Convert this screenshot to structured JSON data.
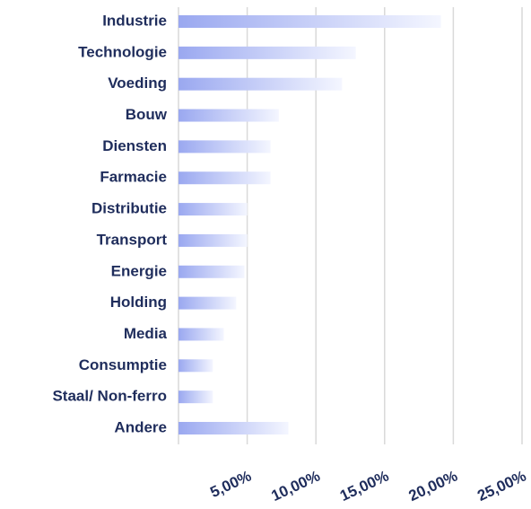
{
  "chart_data": {
    "type": "hbar",
    "categories": [
      "Industrie",
      "Technologie",
      "Voeding",
      "Bouw",
      "Diensten",
      "Farmacie",
      "Distributie",
      "Transport",
      "Energie",
      "Holding",
      "Media",
      "Consumptie",
      "Staal/ Non-ferro",
      "Andere"
    ],
    "values": [
      19.1,
      12.9,
      11.9,
      7.3,
      6.7,
      6.7,
      5.0,
      5.0,
      4.8,
      4.2,
      3.3,
      2.5,
      2.5,
      8.0
    ],
    "color": "#9aa8f0",
    "xlim": [
      0,
      25
    ],
    "xticks": [
      {
        "value": 5,
        "label": "5,00%"
      },
      {
        "value": 10,
        "label": "10,00%"
      },
      {
        "value": 15,
        "label": "15,00%"
      },
      {
        "value": 20,
        "label": "20,00%"
      },
      {
        "value": 25,
        "label": "25,00%"
      }
    ],
    "grid": true
  }
}
